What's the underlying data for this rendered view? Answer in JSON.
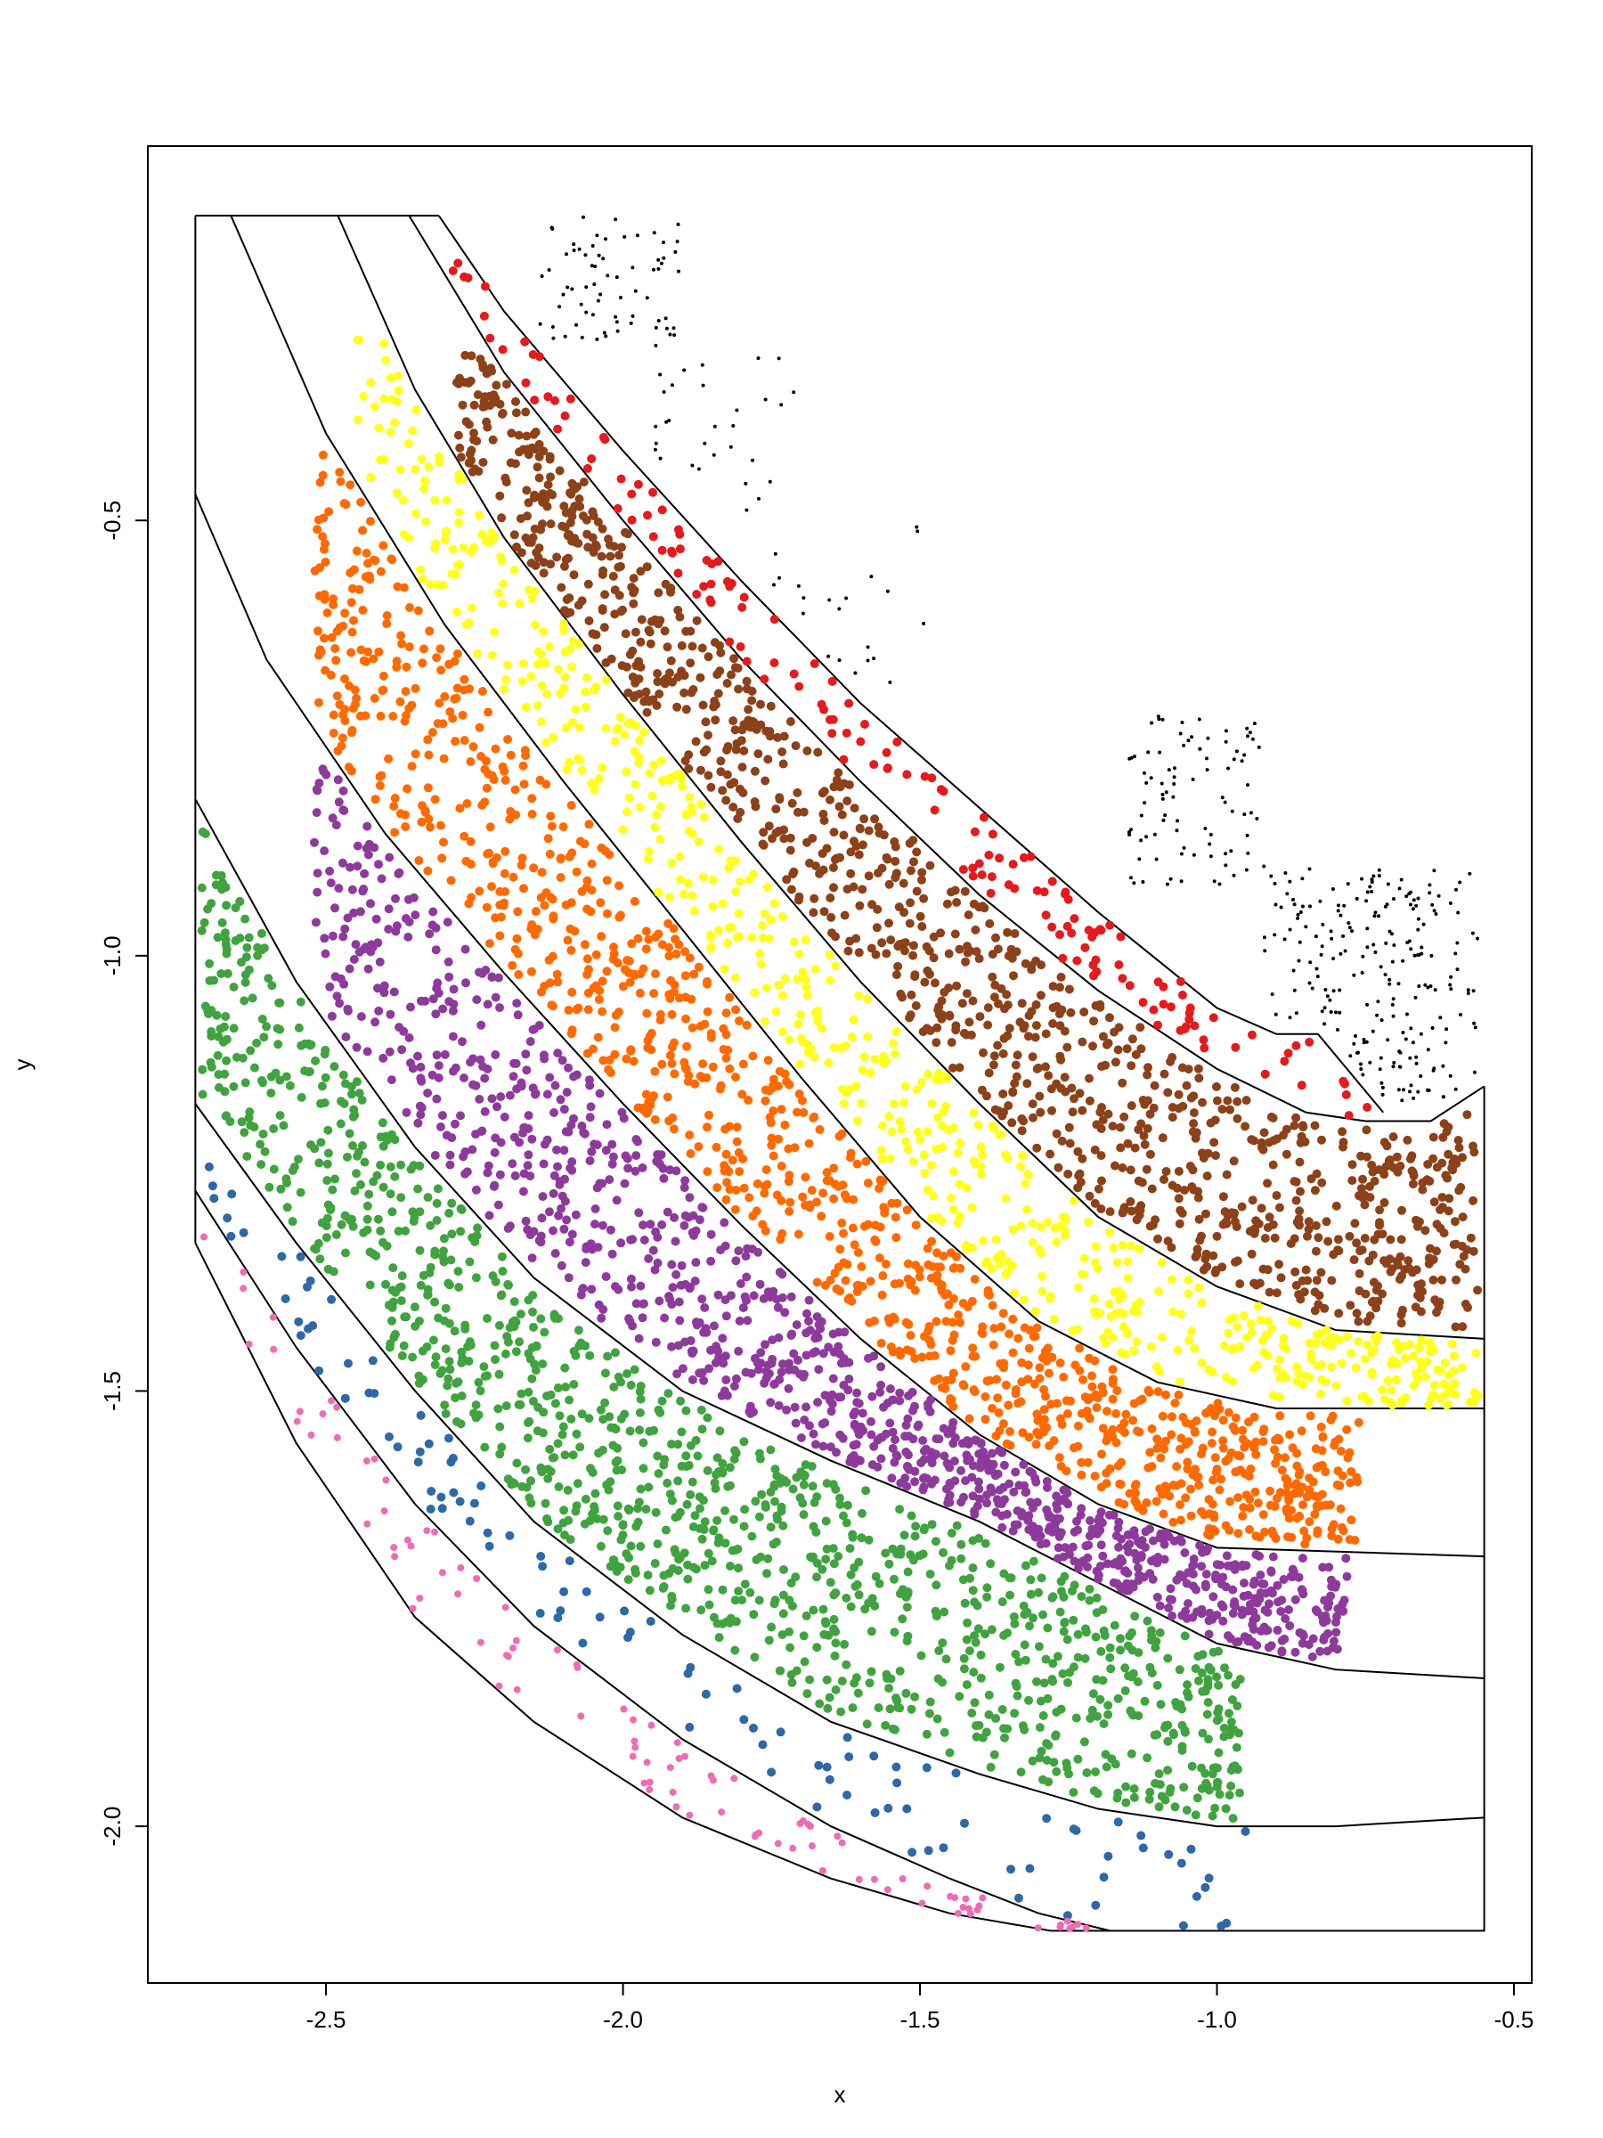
{
  "chart_data": {
    "type": "scatter",
    "xlabel": "x",
    "ylabel": "y",
    "xlim": [
      -2.8,
      -0.47
    ],
    "ylim": [
      -2.18,
      -0.07
    ],
    "x_ticks": [
      "-2.5",
      "-2.0",
      "-1.5",
      "-1.0",
      "-0.5"
    ],
    "y_ticks": [
      "-0.5",
      "-1.0",
      "-1.5",
      "-2.0"
    ],
    "x_tick_values": [
      -2.5,
      -2.0,
      -1.5,
      -1.0,
      -0.5
    ],
    "y_tick_values": [
      -0.5,
      -1.0,
      -1.5,
      -2.0
    ],
    "legend": "none",
    "grid": false,
    "boundaries": [
      [
        [
          -2.31,
          -0.15
        ],
        [
          -2.2,
          -0.26
        ],
        [
          -2.0,
          -0.42
        ],
        [
          -1.8,
          -0.57
        ],
        [
          -1.6,
          -0.71
        ],
        [
          -1.4,
          -0.83
        ],
        [
          -1.2,
          -0.95
        ],
        [
          -1.0,
          -1.06
        ],
        [
          -0.9,
          -1.09
        ],
        [
          -0.83,
          -1.09
        ],
        [
          -0.72,
          -1.18
        ]
      ],
      [
        [
          -2.36,
          -0.15
        ],
        [
          -2.2,
          -0.33
        ],
        [
          -2.0,
          -0.5
        ],
        [
          -1.8,
          -0.66
        ],
        [
          -1.6,
          -0.8
        ],
        [
          -1.4,
          -0.93
        ],
        [
          -1.2,
          -1.04
        ],
        [
          -1.0,
          -1.13
        ],
        [
          -0.85,
          -1.18
        ],
        [
          -0.75,
          -1.19
        ],
        [
          -0.64,
          -1.19
        ],
        [
          -0.55,
          -1.15
        ]
      ],
      [
        [
          -2.48,
          -0.15
        ],
        [
          -2.35,
          -0.35
        ],
        [
          -2.2,
          -0.52
        ],
        [
          -2.0,
          -0.7
        ],
        [
          -1.8,
          -0.87
        ],
        [
          -1.6,
          -1.03
        ],
        [
          -1.4,
          -1.17
        ],
        [
          -1.2,
          -1.3
        ],
        [
          -1.0,
          -1.38
        ],
        [
          -0.8,
          -1.43
        ],
        [
          -0.55,
          -1.44
        ]
      ],
      [
        [
          -2.66,
          -0.15
        ],
        [
          -2.5,
          -0.4
        ],
        [
          -2.3,
          -0.62
        ],
        [
          -2.1,
          -0.8
        ],
        [
          -1.9,
          -0.97
        ],
        [
          -1.7,
          -1.14
        ],
        [
          -1.5,
          -1.3
        ],
        [
          -1.3,
          -1.42
        ],
        [
          -1.1,
          -1.49
        ],
        [
          -0.9,
          -1.52
        ],
        [
          -0.55,
          -1.52
        ]
      ],
      [
        [
          -2.72,
          -0.47
        ],
        [
          -2.6,
          -0.66
        ],
        [
          -2.4,
          -0.86
        ],
        [
          -2.2,
          -1.02
        ],
        [
          -2.0,
          -1.17
        ],
        [
          -1.8,
          -1.31
        ],
        [
          -1.6,
          -1.44
        ],
        [
          -1.4,
          -1.55
        ],
        [
          -1.2,
          -1.63
        ],
        [
          -1.0,
          -1.68
        ],
        [
          -0.55,
          -1.69
        ]
      ],
      [
        [
          -2.72,
          -0.82
        ],
        [
          -2.55,
          -1.03
        ],
        [
          -2.35,
          -1.22
        ],
        [
          -2.15,
          -1.37
        ],
        [
          -1.9,
          -1.5
        ],
        [
          -1.65,
          -1.58
        ],
        [
          -1.4,
          -1.65
        ],
        [
          -1.2,
          -1.72
        ],
        [
          -1.0,
          -1.79
        ],
        [
          -0.8,
          -1.82
        ],
        [
          -0.55,
          -1.83
        ]
      ],
      [
        [
          -2.72,
          -1.17
        ],
        [
          -2.55,
          -1.33
        ],
        [
          -2.35,
          -1.5
        ],
        [
          -2.15,
          -1.65
        ],
        [
          -1.9,
          -1.78
        ],
        [
          -1.65,
          -1.88
        ],
        [
          -1.4,
          -1.94
        ],
        [
          -1.2,
          -1.98
        ],
        [
          -1.0,
          -2.0
        ],
        [
          -0.8,
          -2.0
        ],
        [
          -0.55,
          -1.99
        ]
      ],
      [
        [
          -2.72,
          -1.27
        ],
        [
          -2.55,
          -1.45
        ],
        [
          -2.35,
          -1.63
        ],
        [
          -2.15,
          -1.77
        ],
        [
          -1.9,
          -1.9
        ],
        [
          -1.65,
          -2.0
        ],
        [
          -1.45,
          -2.06
        ],
        [
          -1.3,
          -2.1
        ],
        [
          -1.18,
          -2.12
        ]
      ],
      [
        [
          -2.72,
          -1.33
        ],
        [
          -2.55,
          -1.56
        ],
        [
          -2.35,
          -1.76
        ],
        [
          -2.15,
          -1.88
        ],
        [
          -1.9,
          -1.99
        ],
        [
          -1.65,
          -2.06
        ],
        [
          -1.45,
          -2.1
        ],
        [
          -1.28,
          -2.12
        ]
      ]
    ],
    "outline": [
      [
        -2.72,
        -0.15
      ],
      [
        -2.31,
        -0.15
      ],
      [
        -0.55,
        -1.15
      ],
      [
        -0.55,
        -2.12
      ],
      [
        -1.28,
        -2.12
      ],
      [
        -2.72,
        -1.33
      ]
    ],
    "series": [
      {
        "color": "#000000",
        "size": "small",
        "region": "top-right outlier areas"
      },
      {
        "color": "#e41a1c",
        "region": "between boundaries 1 and 2"
      },
      {
        "color": "#8c4119",
        "region": "between boundaries 2 and 3"
      },
      {
        "color": "#ffff1f",
        "region": "between boundaries 3 and 4"
      },
      {
        "color": "#ff6a00",
        "region": "between boundaries 4 and 5"
      },
      {
        "color": "#8e3a9c",
        "region": "between boundaries 5 and 6"
      },
      {
        "color": "#40a340",
        "region": "between boundaries 6 and 7"
      },
      {
        "color": "#2e68a8",
        "region": "between boundaries 7 and 8"
      },
      {
        "color": "#ef6cb4",
        "region": "between boundaries 8 and 9"
      }
    ]
  }
}
